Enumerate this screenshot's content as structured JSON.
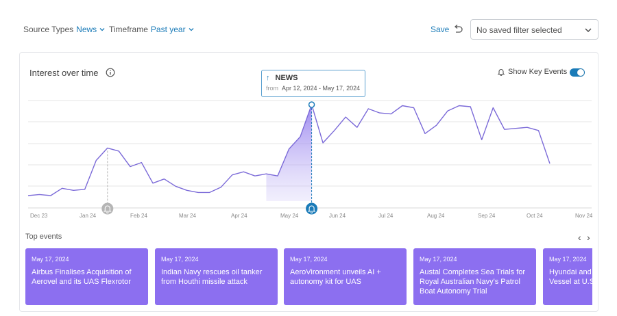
{
  "filters": {
    "source_types_label": "Source Types",
    "source_types_value": "News",
    "timeframe_label": "Timeframe",
    "timeframe_value": "Past year"
  },
  "save_label": "Save",
  "saved_filter": {
    "value": "No saved filter selected"
  },
  "panel": {
    "title": "Interest over time",
    "show_key_events_label": "Show Key Events",
    "show_key_events_on": true
  },
  "tooltip": {
    "series": "NEWS",
    "from_label": "from",
    "range": "Apr 12, 2024 - May 17, 2024"
  },
  "colors": {
    "accent": "#1a7bb8",
    "line": "#7b6ad8",
    "event_card": "#8c6ff0",
    "key_event_gray": "#b5b5b5"
  },
  "chart_data": {
    "type": "line",
    "x_ticks": [
      "Dec 23",
      "Jan 24",
      "Feb 24",
      "Mar 24",
      "Apr 24",
      "May 24",
      "Jun 24",
      "Jul 24",
      "Aug 24",
      "Sep 24",
      "Oct 24",
      "Nov 24"
    ],
    "x_range": [
      "Dec 2023",
      "Nov 2024"
    ],
    "y_range": [
      0,
      100
    ],
    "grid": true,
    "series": [
      {
        "values": [
          12,
          13,
          12,
          19,
          17,
          18,
          46,
          58,
          55,
          40,
          44,
          24,
          28,
          21,
          17,
          15,
          15,
          20,
          32,
          35,
          31,
          33,
          31,
          57,
          69,
          100,
          63,
          75,
          88,
          78,
          96,
          92,
          91,
          99,
          97,
          72,
          80,
          94,
          99,
          98,
          66,
          97,
          76,
          77,
          78,
          75,
          43
        ]
      }
    ],
    "highlight_range": {
      "start_index": 21,
      "end_index": 25
    },
    "key_events": [
      {
        "index": 7,
        "active": false
      },
      {
        "index": 25,
        "active": true
      }
    ]
  },
  "top_events": {
    "label": "Top events",
    "items": [
      {
        "date": "May 17, 2024",
        "headline": "Airbus Finalises Acquisition of Aerovel and its UAS Flexrotor"
      },
      {
        "date": "May 17, 2024",
        "headline": "Indian Navy rescues oil tanker from Houthi missile attack"
      },
      {
        "date": "May 17, 2024",
        "headline": "AeroVironment unveils AI + autonomy kit for UAS"
      },
      {
        "date": "May 17, 2024",
        "headline": "Austal Completes Sea Trials for Royal Australian Navy's Patrol Boat Autonomy Trial"
      },
      {
        "date": "May 17, 2024",
        "headline": "Hyundai and Powered Uni Vessel at U.S"
      }
    ]
  }
}
